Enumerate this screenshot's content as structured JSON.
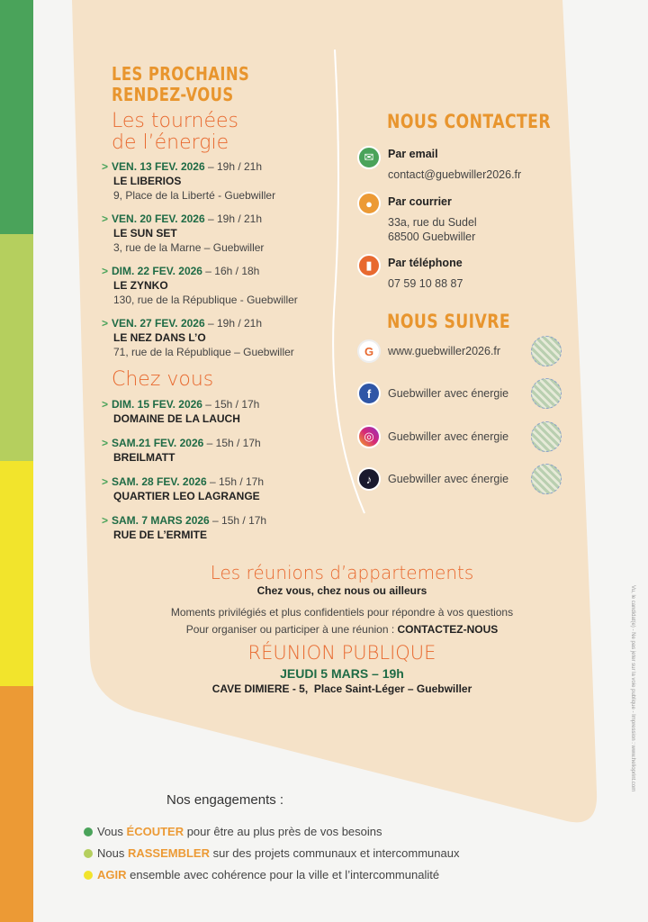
{
  "colors": {
    "green": "#4aa35a",
    "light_green": "#b5cf5e",
    "yellow": "#f2e42c",
    "orange": "#ec9a35",
    "beige": "#f5e2c8",
    "title_orange": "#e8952e",
    "script_orange": "#e8692f",
    "date_green": "#1e6b45"
  },
  "left": {
    "title_line1": "LES PROCHAINS",
    "title_line2": "RENDEZ-VOUS",
    "tournees_line1": "Les tournées",
    "tournees_line2": "de l’énergie",
    "arrow": ">",
    "tournees": [
      {
        "date": "VEN. 13 FEV. 2026",
        "time": " – 19h / 21h",
        "name": "LE LIBERIOS",
        "address": "9, Place de la Liberté - Guebwiller"
      },
      {
        "date": "VEN. 20 FEV. 2026",
        "time": " – 19h / 21h",
        "name": "LE SUN SET",
        "address": "3, rue de la Marne – Guebwiller"
      },
      {
        "date": "DIM. 22 FEV. 2026",
        "time": " – 16h / 18h",
        "name": "LE ZYNKO",
        "address": "130, rue de la République - Guebwiller"
      },
      {
        "date": "VEN. 27 FEV. 2026",
        "time": " – 19h / 21h",
        "name": "LE NEZ DANS L’O",
        "address": "71, rue de la République – Guebwiller"
      }
    ],
    "chez_vous_title": "Chez vous",
    "chez_vous": [
      {
        "date": "DIM. 15 FEV. 2026",
        "time": " – 15h / 17h",
        "name": "DOMAINE DE LA LAUCH"
      },
      {
        "date": "SAM.21 FEV. 2026",
        "time": " – 15h / 17h",
        "name": "BREILMATT"
      },
      {
        "date": "SAM. 28 FEV. 2026",
        "time": " – 15h / 17h",
        "name": "QUARTIER LEO LAGRANGE"
      },
      {
        "date": "SAM. 7 MARS 2026",
        "time": "  – 15h / 17h",
        "name": "RUE DE L’ERMITE"
      }
    ]
  },
  "contact": {
    "title": "NOUS CONTACTER",
    "email_label": "Par email",
    "email": "contact@guebwiller2026.fr",
    "mail_label": "Par courrier",
    "mail_line1": "33a, rue du Sudel",
    "mail_line2": "68500 Guebwiller",
    "phone_label": "Par téléphone",
    "phone": "07 59 10 88 87"
  },
  "follow": {
    "title": "NOUS SUIVRE",
    "items": [
      {
        "icon": "website-logo-icon",
        "text": "www.guebwiller2026.fr"
      },
      {
        "icon": "facebook-icon",
        "text": "Guebwiller avec énergie"
      },
      {
        "icon": "instagram-icon",
        "text": "Guebwiller avec énergie"
      },
      {
        "icon": "tiktok-icon",
        "text": "Guebwiller avec énergie"
      }
    ]
  },
  "reunions": {
    "title": "Les réunions d’appartements",
    "subtitle": "Chez vous, chez nous ou ailleurs",
    "line1": "Moments privilégiés et plus confidentiels pour répondre à vos questions",
    "line2": "Pour organiser ou participer à une réunion : ",
    "line2_bold": "CONTACTEZ-NOUS"
  },
  "publique": {
    "title": "RÉUNION PUBLIQUE",
    "date": "JEUDI 5 MARS – 19h",
    "place": "CAVE DIMIERE - 5,  Place Saint-Léger – Guebwiller"
  },
  "engagements": {
    "title": "Nos engagements :",
    "items": [
      {
        "pre": "Vous ",
        "bold": "ÉCOUTER",
        "post": " pour être au plus près de vos besoins"
      },
      {
        "pre": "Nous ",
        "bold": "RASSEMBLER",
        "post": " sur des projets communaux et intercommunaux"
      },
      {
        "pre": "",
        "bold": "AGIR",
        "post": " ensemble avec cohérence pour la ville et l’intercommunalité"
      }
    ]
  },
  "side_note": "Vu, le candidat(e) - Ne pas jeter sur la voie publique - Impression : www.helioprint.com"
}
